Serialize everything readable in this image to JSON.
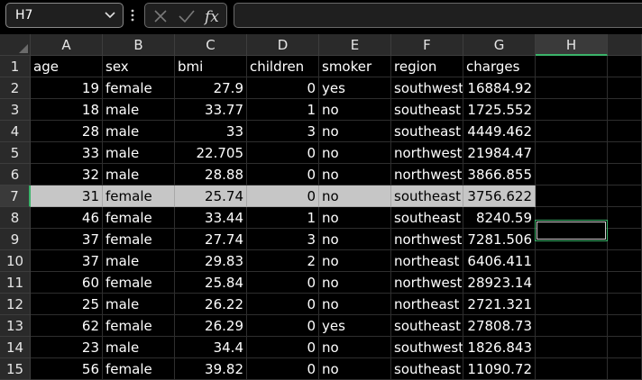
{
  "name_box": {
    "value": "H7"
  },
  "formula_bar": {
    "value": ""
  },
  "icons": {
    "cancel": "close-icon",
    "enter": "checkmark-icon",
    "function": "fx-icon"
  },
  "columns": [
    "A",
    "B",
    "C",
    "D",
    "E",
    "F",
    "G",
    "H"
  ],
  "selected_column": "H",
  "selected_row": "7",
  "accent_color": "#3bb36a",
  "row_numbers": [
    "1",
    "2",
    "3",
    "4",
    "5",
    "6",
    "7",
    "8",
    "9",
    "10",
    "11",
    "12",
    "13",
    "14",
    "15"
  ],
  "rows": [
    [
      "age",
      "sex",
      "bmi",
      "children",
      "smoker",
      "region",
      "charges",
      ""
    ],
    [
      "19",
      "female",
      "27.9",
      "0",
      "yes",
      "southwest",
      "16884.92",
      ""
    ],
    [
      "18",
      "male",
      "33.77",
      "1",
      "no",
      "southeast",
      "1725.552",
      ""
    ],
    [
      "28",
      "male",
      "33",
      "3",
      "no",
      "southeast",
      "4449.462",
      ""
    ],
    [
      "33",
      "male",
      "22.705",
      "0",
      "no",
      "northwest",
      "21984.47",
      ""
    ],
    [
      "32",
      "male",
      "28.88",
      "0",
      "no",
      "northwest",
      "3866.855",
      ""
    ],
    [
      "31",
      "female",
      "25.74",
      "0",
      "no",
      "southeast",
      "3756.622",
      ""
    ],
    [
      "46",
      "female",
      "33.44",
      "1",
      "no",
      "southeast",
      "8240.59",
      ""
    ],
    [
      "37",
      "female",
      "27.74",
      "3",
      "no",
      "northwest",
      "7281.506",
      ""
    ],
    [
      "37",
      "male",
      "29.83",
      "2",
      "no",
      "northeast",
      "6406.411",
      ""
    ],
    [
      "60",
      "female",
      "25.84",
      "0",
      "no",
      "northwest",
      "28923.14",
      ""
    ],
    [
      "25",
      "male",
      "26.22",
      "0",
      "no",
      "northeast",
      "2721.321",
      ""
    ],
    [
      "62",
      "female",
      "26.29",
      "0",
      "yes",
      "southeast",
      "27808.73",
      ""
    ],
    [
      "23",
      "male",
      "34.4",
      "0",
      "no",
      "southwest",
      "1826.843",
      ""
    ],
    [
      "56",
      "female",
      "39.82",
      "0",
      "no",
      "southeast",
      "11090.72",
      ""
    ]
  ]
}
